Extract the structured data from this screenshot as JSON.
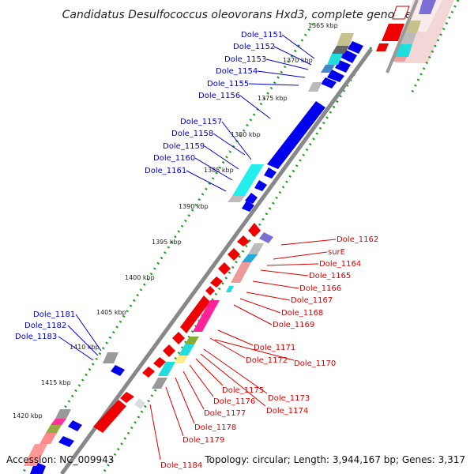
{
  "title": "Candidatus Desulfococcus oleovorans Hxd3, complete genome",
  "footer": {
    "accession": "Accession: NC_009943",
    "summary": "Topology: circular; Length: 3,944,167 bp; Genes: 3,317"
  },
  "colors": {
    "backbone": "#999999",
    "tick": "#229922",
    "forward_label": "#0000cc",
    "reverse_label": "#dd0000",
    "forward_gene": "#0000ee",
    "reverse_gene": "#ee0000"
  },
  "ticks": [
    {
      "label": "1365 kbp"
    },
    {
      "label": "1370 kbp"
    },
    {
      "label": "1375 kbp"
    },
    {
      "label": "1380 kbp"
    },
    {
      "label": "1385 kbp"
    },
    {
      "label": "1390 kbp"
    },
    {
      "label": "1395 kbp"
    },
    {
      "label": "1400 kbp"
    },
    {
      "label": "1405 kbp"
    },
    {
      "label": "1410 kbp"
    },
    {
      "label": "1415 kbp"
    },
    {
      "label": "1420 kbp"
    }
  ],
  "forward_genes": [
    {
      "label": "Dole_1151"
    },
    {
      "label": "Dole_1152"
    },
    {
      "label": "Dole_1153"
    },
    {
      "label": "Dole_1154"
    },
    {
      "label": "Dole_1155"
    },
    {
      "label": "Dole_1156"
    },
    {
      "label": "Dole_1157"
    },
    {
      "label": "Dole_1158"
    },
    {
      "label": "Dole_1159"
    },
    {
      "label": "Dole_1160"
    },
    {
      "label": "Dole_1161"
    },
    {
      "label": "Dole_1181"
    },
    {
      "label": "Dole_1182"
    },
    {
      "label": "Dole_1183"
    }
  ],
  "reverse_genes": [
    {
      "label": "Dole_1162"
    },
    {
      "label": "surE"
    },
    {
      "label": "Dole_1164"
    },
    {
      "label": "Dole_1165"
    },
    {
      "label": "Dole_1166"
    },
    {
      "label": "Dole_1167"
    },
    {
      "label": "Dole_1168"
    },
    {
      "label": "Dole_1169"
    },
    {
      "label": "Dole_1171"
    },
    {
      "label": "Dole_1172"
    },
    {
      "label": "Dole_1170"
    },
    {
      "label": "Dole_1175"
    },
    {
      "label": "Dole_1173"
    },
    {
      "label": "Dole_1176"
    },
    {
      "label": "Dole_1174"
    },
    {
      "label": "Dole_1177"
    },
    {
      "label": "Dole_1178"
    },
    {
      "label": "Dole_1179"
    },
    {
      "label": "Dole_1184"
    }
  ]
}
